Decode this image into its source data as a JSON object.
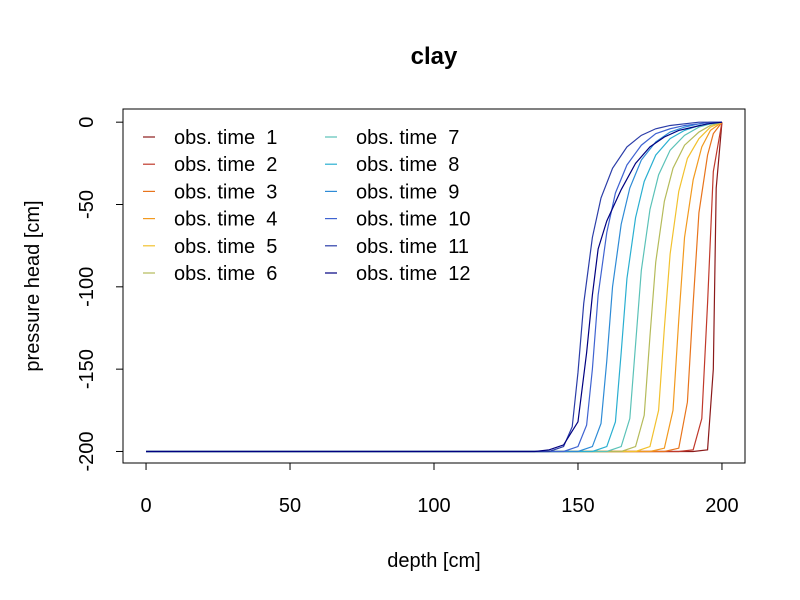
{
  "chart_data": {
    "type": "line",
    "title": "clay",
    "xlabel": "depth [cm]",
    "ylabel": "pressure head [cm]",
    "xlim": [
      -8,
      208
    ],
    "ylim": [
      -207,
      8
    ],
    "xticks": [
      0,
      50,
      100,
      150,
      200
    ],
    "yticks": [
      0,
      -50,
      -100,
      -150,
      -200
    ],
    "legend_placement": "top-left",
    "series": [
      {
        "name": "obs. time  1",
        "color": "#8B1A1A",
        "x": [
          0,
          190,
          195,
          197,
          198,
          200
        ],
        "y": [
          -200,
          -200,
          -199,
          -150,
          -40,
          0
        ]
      },
      {
        "name": "obs. time  2",
        "color": "#C0392B",
        "x": [
          0,
          185,
          190,
          193,
          195,
          197,
          200
        ],
        "y": [
          -200,
          -200,
          -199,
          -180,
          -110,
          -30,
          0
        ]
      },
      {
        "name": "obs. time  3",
        "color": "#E8741C",
        "x": [
          0,
          180,
          185,
          188,
          190,
          192,
          195,
          197,
          200
        ],
        "y": [
          -200,
          -200,
          -198,
          -170,
          -110,
          -55,
          -20,
          -7,
          0
        ]
      },
      {
        "name": "obs. time  4",
        "color": "#F29A1F",
        "x": [
          0,
          175,
          180,
          183,
          185,
          187,
          190,
          193,
          196,
          200
        ],
        "y": [
          -200,
          -200,
          -198,
          -175,
          -120,
          -70,
          -35,
          -15,
          -5,
          0
        ]
      },
      {
        "name": "obs. time  5",
        "color": "#F2C12E",
        "x": [
          0,
          170,
          175,
          178,
          180,
          182,
          185,
          188,
          192,
          196,
          200
        ],
        "y": [
          -200,
          -200,
          -197,
          -175,
          -125,
          -80,
          -42,
          -22,
          -10,
          -3,
          0
        ]
      },
      {
        "name": "obs. time  6",
        "color": "#B5BB5A",
        "x": [
          0,
          165,
          170,
          173,
          175,
          177,
          180,
          183,
          187,
          192,
          196,
          200
        ],
        "y": [
          -200,
          -200,
          -197,
          -178,
          -130,
          -85,
          -48,
          -28,
          -14,
          -6,
          -2,
          0
        ]
      },
      {
        "name": "obs. time  7",
        "color": "#5BC2B8",
        "x": [
          0,
          160,
          165,
          168,
          170,
          172,
          175,
          178,
          182,
          187,
          192,
          196,
          200
        ],
        "y": [
          -200,
          -200,
          -197,
          -180,
          -135,
          -90,
          -53,
          -32,
          -17,
          -8,
          -3,
          -1,
          0
        ]
      },
      {
        "name": "obs. time  8",
        "color": "#2AAFD1",
        "x": [
          0,
          155,
          160,
          163,
          165,
          167,
          170,
          173,
          177,
          182,
          187,
          192,
          196,
          200
        ],
        "y": [
          -200,
          -200,
          -197,
          -182,
          -140,
          -95,
          -58,
          -36,
          -20,
          -10,
          -5,
          -2,
          -1,
          0
        ]
      },
      {
        "name": "obs. time  9",
        "color": "#2E8BD6",
        "x": [
          0,
          150,
          155,
          158,
          160,
          162,
          165,
          168,
          172,
          177,
          182,
          187,
          192,
          196,
          200
        ],
        "y": [
          -200,
          -200,
          -197,
          -183,
          -145,
          -100,
          -62,
          -40,
          -23,
          -12,
          -6,
          -3,
          -1,
          0,
          0
        ]
      },
      {
        "name": "obs. time  10",
        "color": "#3F63D1",
        "x": [
          0,
          145,
          150,
          153,
          155,
          157,
          160,
          163,
          167,
          172,
          177,
          182,
          187,
          192,
          196,
          200
        ],
        "y": [
          -200,
          -200,
          -197,
          -184,
          -150,
          -105,
          -67,
          -43,
          -26,
          -14,
          -7,
          -4,
          -2,
          -1,
          0,
          0
        ]
      },
      {
        "name": "obs. time  11",
        "color": "#2B3DA8",
        "x": [
          0,
          140,
          145,
          148,
          150,
          152,
          155,
          158,
          162,
          167,
          172,
          177,
          182,
          187,
          192,
          196,
          200
        ],
        "y": [
          -200,
          -200,
          -197,
          -185,
          -152,
          -110,
          -70,
          -46,
          -28,
          -15,
          -8,
          -4,
          -2,
          -1,
          0,
          0,
          0
        ]
      },
      {
        "name": "obs. time  12",
        "color": "#000080",
        "x": [
          0,
          135,
          140,
          145,
          150,
          153,
          155,
          157,
          160,
          165,
          170,
          175,
          180,
          185,
          190,
          195,
          200
        ],
        "y": [
          -200,
          -200,
          -199,
          -196,
          -182,
          -140,
          -105,
          -77,
          -60,
          -41,
          -25,
          -15,
          -9,
          -5,
          -3,
          -1,
          0
        ]
      }
    ]
  }
}
